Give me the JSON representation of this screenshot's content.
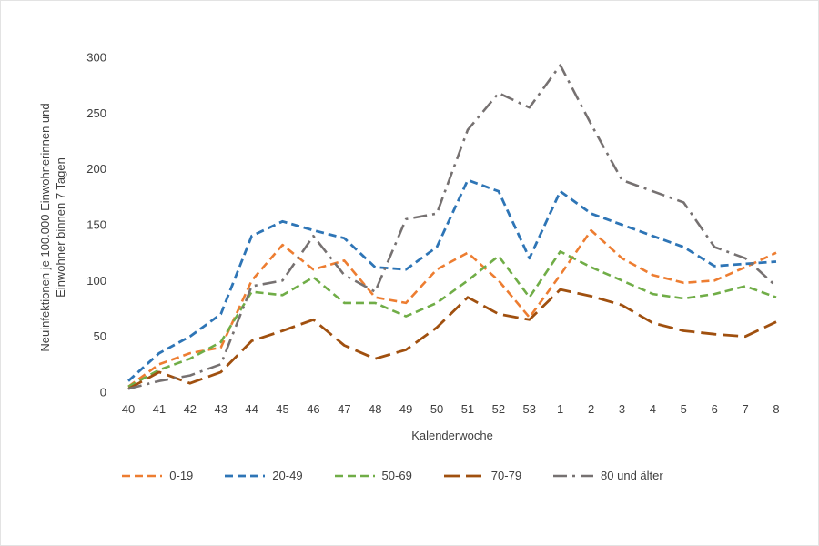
{
  "chart_data": {
    "type": "line",
    "title": "",
    "xlabel": "Kalenderwoche",
    "ylabel_lines": [
      "Neuinfektionen je 100.000 Einwohnerinnen und",
      "Einwohner binnen 7 Tagen"
    ],
    "ylim": [
      0,
      300
    ],
    "yticks": [
      0,
      50,
      100,
      150,
      200,
      250,
      300
    ],
    "grid": false,
    "legend_position": "bottom",
    "categories": [
      "40",
      "41",
      "42",
      "43",
      "44",
      "45",
      "46",
      "47",
      "48",
      "49",
      "50",
      "51",
      "52",
      "53",
      "1",
      "2",
      "3",
      "4",
      "5",
      "6",
      "7",
      "8"
    ],
    "series": [
      {
        "name": "0-19",
        "color": "#ED7D31",
        "dash": "9 5",
        "width": 2.6,
        "values": [
          5,
          25,
          35,
          40,
          100,
          132,
          110,
          118,
          85,
          80,
          110,
          125,
          100,
          67,
          105,
          145,
          120,
          105,
          98,
          100,
          112,
          125
        ]
      },
      {
        "name": "20-49",
        "color": "#2E75B6",
        "dash": "9 5",
        "width": 2.8,
        "values": [
          10,
          35,
          50,
          70,
          140,
          153,
          145,
          138,
          112,
          110,
          130,
          190,
          180,
          120,
          180,
          160,
          150,
          140,
          130,
          113,
          115,
          117
        ]
      },
      {
        "name": "50-69",
        "color": "#70AD47",
        "dash": "9 5",
        "width": 2.6,
        "values": [
          5,
          20,
          30,
          45,
          90,
          87,
          103,
          80,
          80,
          68,
          80,
          100,
          122,
          85,
          126,
          112,
          100,
          88,
          84,
          88,
          95,
          85
        ]
      },
      {
        "name": "70-79",
        "color": "#A0500F",
        "dash": "17 7",
        "width": 2.8,
        "values": [
          3,
          18,
          8,
          18,
          46,
          55,
          65,
          42,
          30,
          38,
          58,
          85,
          70,
          65,
          92,
          86,
          78,
          62,
          55,
          52,
          50,
          63
        ]
      },
      {
        "name": "80 und älter",
        "color": "#767171",
        "dash": "15 6 3 6",
        "width": 2.6,
        "values": [
          3,
          10,
          15,
          25,
          95,
          100,
          140,
          105,
          90,
          155,
          160,
          235,
          268,
          255,
          293,
          240,
          190,
          180,
          170,
          130,
          120,
          95
        ]
      }
    ]
  }
}
